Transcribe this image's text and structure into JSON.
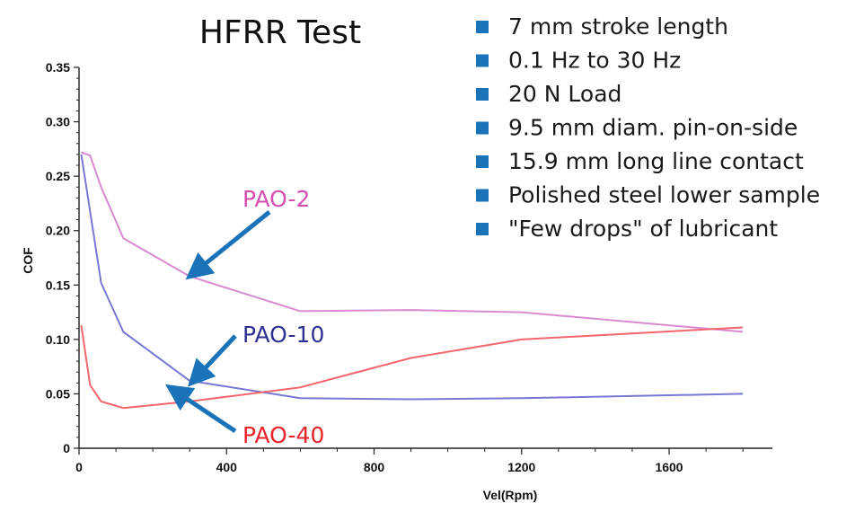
{
  "chart_data": {
    "type": "line",
    "title": "HFRR Test",
    "xlabel": "Vel(Rpm)",
    "ylabel": "COF",
    "xlim": [
      0,
      1880
    ],
    "ylim": [
      0,
      0.35
    ],
    "x_ticks": [
      0,
      400,
      800,
      1200,
      1600
    ],
    "y_ticks": [
      0,
      0.05,
      0.1,
      0.15,
      0.2,
      0.25,
      0.3,
      0.35
    ],
    "x_tick_labels": [
      "0",
      "400",
      "800",
      "1200",
      "1600"
    ],
    "y_tick_labels": [
      "0",
      "0.05",
      "0.10",
      "0.15",
      "0.20",
      "0.25",
      "0.30",
      "0.35"
    ],
    "grid": false,
    "series": [
      {
        "name": "PAO-2",
        "color": "#d98ad0",
        "x": [
          6,
          30,
          60,
          120,
          300,
          600,
          900,
          1200,
          1800
        ],
        "y": [
          0.272,
          0.269,
          0.24,
          0.193,
          0.158,
          0.126,
          0.127,
          0.125,
          0.107
        ]
      },
      {
        "name": "PAO-10",
        "color": "#7878d4",
        "x": [
          6,
          60,
          120,
          300,
          600,
          900,
          1200,
          1800
        ],
        "y": [
          0.27,
          0.152,
          0.107,
          0.062,
          0.046,
          0.045,
          0.046,
          0.05
        ]
      },
      {
        "name": "PAO-40",
        "color": "#f4666e",
        "x": [
          6,
          30,
          60,
          120,
          300,
          600,
          900,
          1200,
          1800
        ],
        "y": [
          0.113,
          0.058,
          0.043,
          0.037,
          0.043,
          0.056,
          0.083,
          0.1,
          0.111
        ]
      }
    ],
    "annotations": [
      {
        "text": "PAO-2",
        "color": "#d44fb0",
        "arrow_to": [
          300,
          0.158
        ]
      },
      {
        "text": "PAO-10",
        "color": "#2e3192",
        "arrow_to": [
          310,
          0.062
        ]
      },
      {
        "text": "PAO-40",
        "color": "#e8232a",
        "arrow_to": [
          250,
          0.055
        ]
      }
    ],
    "bullets": [
      "7 mm stroke length",
      "0.1 Hz to 30 Hz",
      "20 N Load",
      "9.5 mm diam. pin-on-side",
      "15.9 mm long line contact",
      "Polished steel lower sample",
      "\"Few drops\" of lubricant"
    ],
    "accent_color": "#1a73b8"
  }
}
